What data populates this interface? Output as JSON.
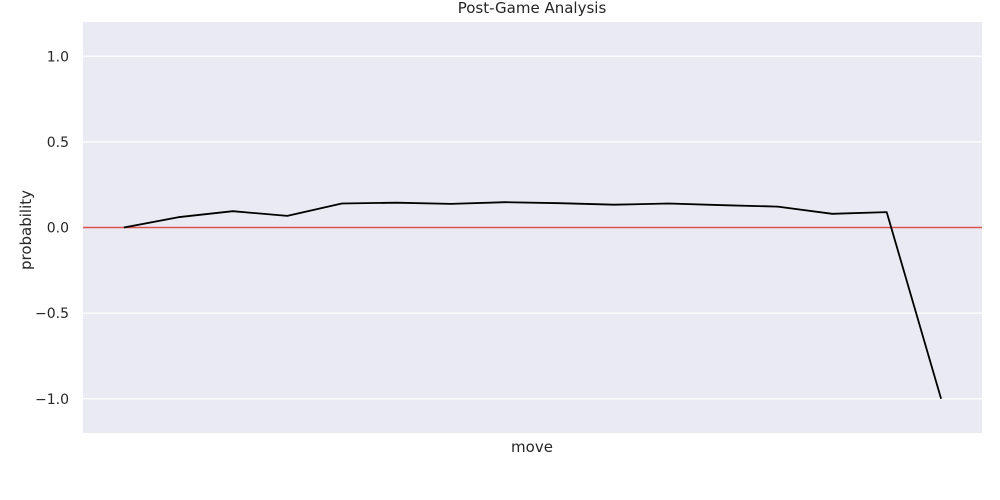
{
  "chart_data": {
    "type": "line",
    "title": "Post-Game Analysis",
    "xlabel": "move",
    "ylabel": "probability",
    "ylim": [
      -1.2,
      1.2
    ],
    "xlim": [
      -0.75,
      15.75
    ],
    "yticks": [
      -1.0,
      -0.5,
      0.0,
      0.5,
      1.0
    ],
    "ytick_labels": [
      "−1.0",
      "−0.5",
      "0.0",
      "0.5",
      "1.0"
    ],
    "x_ticks_shown": false,
    "grid": true,
    "background_color": "#eaeaf2",
    "grid_color": "#ffffff",
    "reference_line": {
      "y": 0.0,
      "color": "#d9534f"
    },
    "series": [
      {
        "color": "#000000",
        "x": [
          0,
          1,
          2,
          3,
          4,
          5,
          6,
          7,
          8,
          9,
          10,
          11,
          12,
          13,
          14,
          15
        ],
        "y": [
          0.0,
          0.06,
          0.095,
          0.068,
          0.14,
          0.145,
          0.138,
          0.148,
          0.142,
          0.133,
          0.14,
          0.13,
          0.122,
          0.08,
          0.09,
          -1.0
        ]
      }
    ]
  }
}
